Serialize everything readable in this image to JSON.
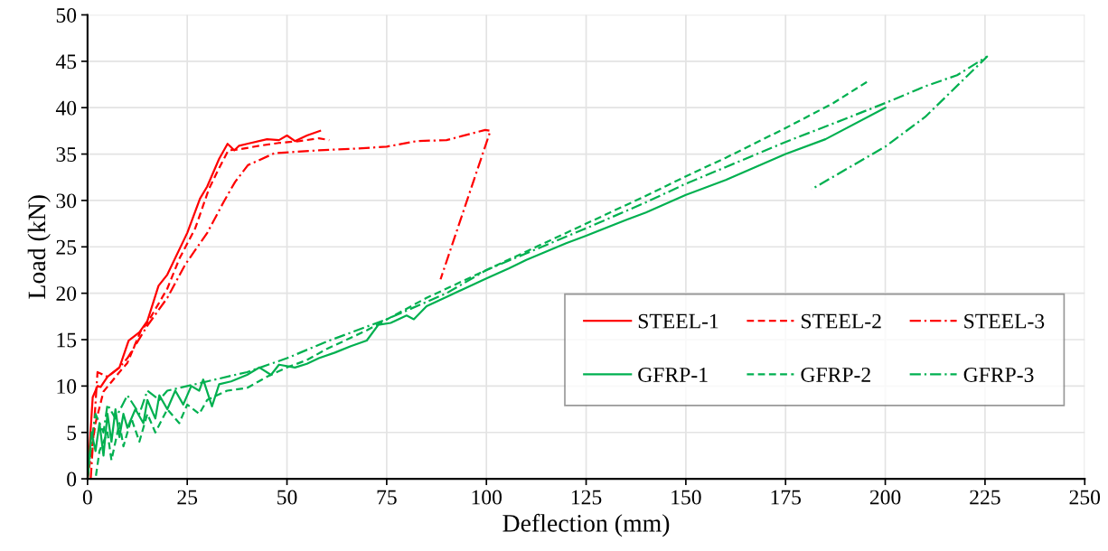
{
  "chart_data": {
    "type": "line",
    "xlabel": "Deflection (mm)",
    "ylabel": "Load (kN)",
    "xlim": [
      0,
      250
    ],
    "ylim": [
      0,
      50
    ],
    "xticks": [
      0,
      25,
      50,
      75,
      100,
      125,
      150,
      175,
      200,
      225,
      250
    ],
    "yticks": [
      0,
      5,
      10,
      15,
      20,
      25,
      30,
      35,
      40,
      45,
      50
    ],
    "grid": true,
    "legend": "bottom right",
    "marker": "none",
    "series": [
      {
        "name": "STEEL-1",
        "color": "#ff0000",
        "line_style": "solid",
        "x": [
          0,
          1.3,
          2.5,
          3.3,
          5,
          8,
          10.3,
          13,
          15,
          17.8,
          20,
          25,
          28.2,
          30,
          33,
          35.1,
          36.8,
          38,
          40,
          45,
          48,
          50,
          52,
          55,
          58.3
        ],
        "values": [
          0,
          8.8,
          10,
          9.9,
          11,
          12,
          14.9,
          15.8,
          17,
          20.8,
          22,
          26.5,
          30.2,
          31.5,
          34.5,
          36.1,
          35.4,
          35.9,
          36.1,
          36.6,
          36.5,
          37,
          36.4,
          37,
          37.5
        ]
      },
      {
        "name": "STEEL-2",
        "color": "#ff0000",
        "line_style": "dashed",
        "x": [
          0,
          2,
          4,
          8,
          10,
          13.3,
          15,
          20,
          23,
          27,
          30.4,
          33,
          35.3,
          38,
          43.1,
          48,
          53.2,
          58,
          60.6
        ],
        "values": [
          0,
          6,
          9.4,
          11.5,
          12.5,
          15.9,
          16.8,
          20.5,
          23.7,
          27,
          31.2,
          33.5,
          35.4,
          35.5,
          35.9,
          36.2,
          36.4,
          36.7,
          36.5
        ]
      },
      {
        "name": "STEEL-3",
        "color": "#ff0000",
        "line_style": "dashdot",
        "x": [
          0.8,
          2.5,
          5,
          8,
          10,
          15,
          20,
          24.5,
          30,
          34.2,
          37,
          40.2,
          46.9,
          58,
          67.7,
          75,
          82.6,
          90,
          99.7,
          101,
          88.5
        ],
        "values": [
          0,
          11.5,
          11,
          12,
          13,
          16.5,
          19.5,
          23.1,
          26.5,
          29.9,
          32,
          33.8,
          35.1,
          35.4,
          35.6,
          35.8,
          36.4,
          36.5,
          37.6,
          37.5,
          21.5
        ]
      },
      {
        "name": "GFRP-1",
        "color": "#00b050",
        "line_style": "solid",
        "x": [
          0,
          1,
          2,
          3,
          4,
          5,
          6,
          7,
          8,
          9,
          10,
          12,
          14,
          15,
          17,
          18,
          20,
          22,
          24,
          26,
          28,
          29,
          31.2,
          33,
          36,
          40,
          43.1,
          46,
          48,
          52,
          55,
          58,
          62,
          66,
          70,
          72.9,
          76,
          80,
          81.8,
          85,
          90,
          95,
          100,
          105.7,
          110,
          115,
          120,
          125,
          135,
          140,
          150,
          160,
          175,
          185,
          200
        ],
        "values": [
          0,
          5,
          3,
          6,
          2.5,
          7,
          4,
          7.5,
          4.5,
          7,
          5.5,
          7.5,
          6,
          8.5,
          6.5,
          9,
          7.5,
          9.5,
          8,
          10,
          9.5,
          10.7,
          7.8,
          10.2,
          10.5,
          11.2,
          12,
          11.2,
          12.3,
          12,
          12.4,
          13,
          13.6,
          14.3,
          14.9,
          16.6,
          16.8,
          17.6,
          17.2,
          18.6,
          19.6,
          20.6,
          21.6,
          22.7,
          23.6,
          24.5,
          25.4,
          26.2,
          27.9,
          28.7,
          30.6,
          32.2,
          35,
          36.6,
          40
        ]
      },
      {
        "name": "GFRP-2",
        "color": "#00b050",
        "line_style": "dashed",
        "x": [
          0,
          2,
          3,
          5,
          6,
          8,
          9,
          11,
          13,
          15,
          17,
          20,
          23,
          25,
          28,
          30,
          35,
          40,
          45,
          50,
          55,
          60,
          70,
          85,
          100,
          110,
          125,
          140,
          150,
          160,
          175,
          187,
          196.2
        ],
        "values": [
          0,
          0,
          3,
          5,
          2,
          6,
          3.5,
          6.5,
          4,
          7,
          5,
          7.5,
          6,
          8,
          7,
          8.5,
          9.5,
          9.8,
          11,
          12,
          12.8,
          14,
          16,
          19.5,
          22.5,
          24.5,
          27.5,
          30.5,
          32.6,
          34.6,
          37.8,
          40.5,
          43
        ]
      },
      {
        "name": "GFRP-3",
        "color": "#00b050",
        "line_style": "dashdot",
        "x": [
          0,
          1,
          2,
          4,
          5,
          7,
          10,
          13,
          15,
          18,
          20,
          25,
          30,
          40,
          50,
          60,
          75,
          90,
          100,
          110,
          125,
          140,
          150,
          160,
          175,
          190,
          200,
          210,
          218,
          225.5,
          210,
          200,
          181.5
        ],
        "values": [
          0,
          4,
          7,
          5,
          8,
          6.5,
          9,
          7,
          9.5,
          8.5,
          9.5,
          10,
          10.5,
          11.5,
          13,
          14.8,
          17.2,
          20,
          22.5,
          24.3,
          27,
          29.8,
          31.8,
          33.6,
          36.3,
          38.8,
          40.5,
          42.3,
          43.5,
          45.5,
          39,
          35.8,
          31.2
        ]
      }
    ]
  }
}
